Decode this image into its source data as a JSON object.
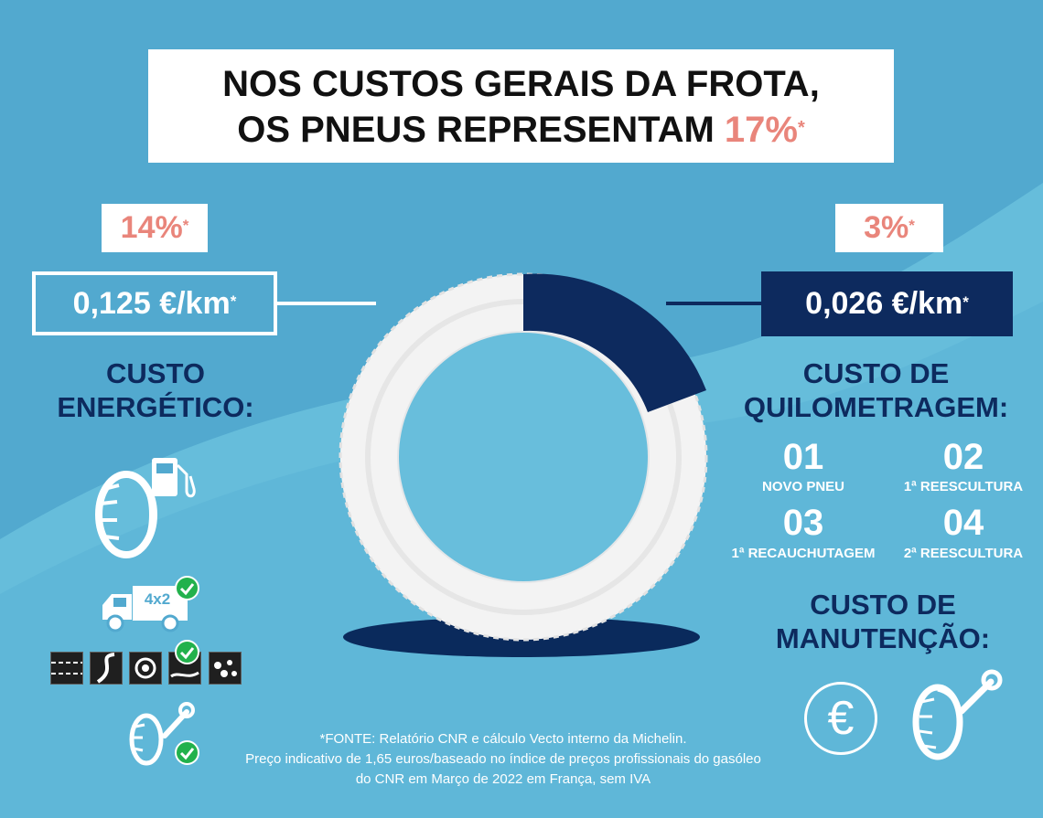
{
  "title": {
    "line1": "NOS CUSTOS GERAIS DA FROTA,",
    "line2_prefix": "OS PNEUS REPRESENTAM ",
    "line2_percent": "17%",
    "asterisk": "*"
  },
  "left": {
    "percent": "14%",
    "price": "0,125 €/km",
    "heading_line1": "CUSTO",
    "heading_line2": "ENERGÉTICO:",
    "icons": [
      "tire-fuel-pump-icon",
      "truck-4x2-icon",
      "road-type-icons",
      "tire-wrench-icon",
      "checkmark-icon"
    ],
    "truck_label": "4x2"
  },
  "right": {
    "percent": "3%",
    "price": "0,026 €/km",
    "heading1_line1": "CUSTO DE",
    "heading1_line2": "QUILOMETRAGEM:",
    "stages": [
      {
        "num": "01",
        "label": "NOVO PNEU"
      },
      {
        "num": "02",
        "label": "1ª REESCULTURA"
      },
      {
        "num": "03",
        "label": "1ª RECAUCHUTAGEM"
      },
      {
        "num": "04",
        "label": "2ª REESCULTURA"
      }
    ],
    "heading2_line1": "CUSTO DE",
    "heading2_line2": "MANUTENÇÃO:",
    "euro_symbol": "€"
  },
  "donut": {
    "total_percent": 17,
    "tire_percent_of_fleet": 3,
    "colors": {
      "tire": "#f3f3f3",
      "segment": "#0d2a5e",
      "shadow": "#0a2a5c"
    }
  },
  "footnote": {
    "line1": "*FONTE: Relatório CNR e cálculo Vecto interno da Michelin.",
    "line2": "Preço indicativo de 1,65 euros/baseado no índice de preços profissionais do gasóleo",
    "line3": "do CNR em Março de 2022 em França, sem IVA"
  },
  "colors": {
    "background": "#52a9cf",
    "background_light": "#6cc4de",
    "accent_salmon": "#e9857b",
    "navy": "#0d2a5e",
    "check_green": "#22b14c"
  }
}
